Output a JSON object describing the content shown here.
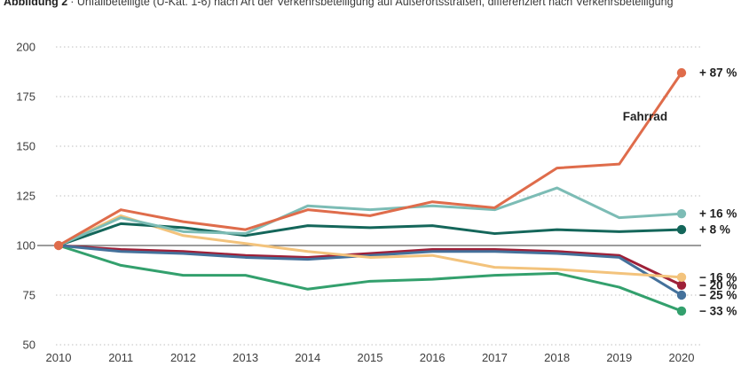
{
  "title": {
    "prefix": "Abbildung 2",
    "rest": "· Unfallbeteiligte (U-Kat. 1-6) nach Art der Verkehrsbeteiligung auf Außerortsstraßen, differenziert nach Verkehrsbeteiligung"
  },
  "chart_data": {
    "type": "line",
    "categories": [
      "2010",
      "2011",
      "2012",
      "2013",
      "2014",
      "2015",
      "2016",
      "2017",
      "2018",
      "2019",
      "2020"
    ],
    "yticks": [
      200,
      175,
      150,
      125,
      100,
      75,
      50
    ],
    "ylim": [
      50,
      200
    ],
    "baseline": 100,
    "grid": "horizontal-dotted",
    "legend_position": "end-of-line-labels-right",
    "series": [
      {
        "id": "green",
        "label_end": "− 33 %",
        "color": "#33a06d",
        "values": [
          100,
          90,
          85,
          85,
          78,
          82,
          83,
          85,
          86,
          79,
          67
        ]
      },
      {
        "id": "dark-red",
        "label_end": "− 20 %",
        "color": "#9e2038",
        "values": [
          100,
          98,
          97,
          95,
          94,
          96,
          98,
          98,
          97,
          95,
          80
        ]
      },
      {
        "id": "steel-blue",
        "label_end": "− 25 %",
        "color": "#44719b",
        "values": [
          100,
          97,
          96,
          94,
          93,
          95,
          97,
          97,
          96,
          94,
          75
        ]
      },
      {
        "id": "yellow",
        "label_end": "− 16 %",
        "color": "#f3c37c",
        "values": [
          100,
          115,
          105,
          101,
          97,
          94,
          95,
          89,
          88,
          86,
          84
        ]
      },
      {
        "id": "dark-teal",
        "label_end": "+ 8 %",
        "color": "#14665a",
        "values": [
          100,
          111,
          109,
          105,
          110,
          109,
          110,
          106,
          108,
          107,
          108
        ]
      },
      {
        "id": "light-teal",
        "label_end": "+ 16 %",
        "color": "#7cbcb5",
        "values": [
          100,
          114,
          107,
          106,
          120,
          118,
          120,
          118,
          129,
          114,
          116
        ]
      },
      {
        "id": "fahrrad",
        "name": "Fahrrad",
        "annotation": "Fahrrad",
        "start_dot": true,
        "label_end": "+ 87 %",
        "color": "#df6c4b",
        "values": [
          100,
          118,
          112,
          108,
          118,
          115,
          122,
          119,
          139,
          141,
          187
        ]
      }
    ]
  }
}
